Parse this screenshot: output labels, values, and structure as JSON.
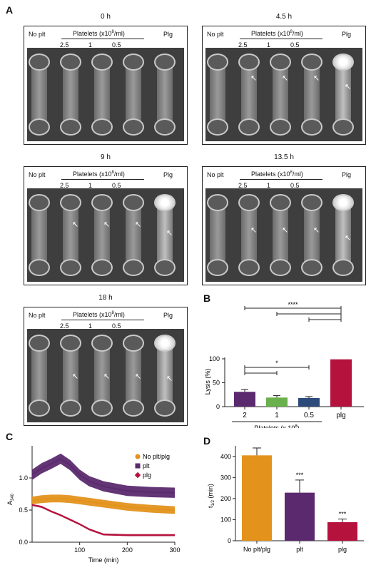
{
  "panel_labels": {
    "a": "A",
    "b": "B",
    "c": "C",
    "d": "D"
  },
  "header": {
    "no_plt": "No plt",
    "platelets": "Platelets (x10",
    "platelets_exp": "8",
    "platelets_unit": "/ml)",
    "plg": "Plg",
    "concs": [
      "2.5",
      "1",
      "0.5"
    ]
  },
  "timepoints": [
    "0 h",
    "4.5 h",
    "9 h",
    "13.5 h",
    "18 h"
  ],
  "panel_b": {
    "chart_data": {
      "type": "bar",
      "categories": [
        "2",
        "1",
        "0.5",
        "plg"
      ],
      "values": [
        31,
        19,
        18,
        99
      ],
      "errors": [
        5,
        4,
        3,
        0
      ],
      "colors": [
        "#5b2a6e",
        "#6ab04c",
        "#2c4a7a",
        "#b5123e"
      ],
      "ylabel": "Lysis (%)",
      "xlabel_main": "Platelets (x 10",
      "xlabel_exp": "8",
      "xlabel_end": ")",
      "yticks": [
        "0",
        "50",
        "100"
      ],
      "ylim": [
        0,
        100
      ],
      "sig": [
        "****",
        "*"
      ]
    }
  },
  "panel_c": {
    "chart_data": {
      "type": "line",
      "ylabel_main": "A",
      "ylabel_sub": "340",
      "xlabel": "Time (min)",
      "xlim": [
        0,
        300
      ],
      "ylim": [
        0,
        1.5
      ],
      "xticks": [
        "100",
        "200",
        "300"
      ],
      "yticks": [
        "0.0",
        "0.5",
        "1.0"
      ],
      "series": [
        {
          "name": "No plt/plg",
          "color": "#e3921c",
          "marker": "circle",
          "x": [
            0,
            20,
            40,
            60,
            80,
            100,
            120,
            150,
            200,
            250,
            300
          ],
          "y": [
            0.65,
            0.67,
            0.68,
            0.68,
            0.67,
            0.65,
            0.63,
            0.6,
            0.55,
            0.52,
            0.5
          ],
          "err": 0.06
        },
        {
          "name": "plt",
          "color": "#5b2a6e",
          "marker": "square",
          "x": [
            0,
            20,
            40,
            60,
            80,
            100,
            120,
            150,
            200,
            250,
            300
          ],
          "y": [
            1.05,
            1.15,
            1.22,
            1.3,
            1.2,
            1.05,
            0.95,
            0.87,
            0.8,
            0.78,
            0.77
          ],
          "err": 0.08
        },
        {
          "name": "plg",
          "color": "#b5123e",
          "marker": "diamond",
          "x": [
            0,
            20,
            40,
            60,
            80,
            100,
            120,
            150,
            200,
            250,
            300
          ],
          "y": [
            0.58,
            0.55,
            0.48,
            0.42,
            0.35,
            0.28,
            0.2,
            0.12,
            0.11,
            0.11,
            0.11
          ],
          "err": 0.015
        }
      ]
    }
  },
  "panel_d": {
    "chart_data": {
      "type": "bar",
      "categories": [
        "No plt/plg",
        "plt",
        "plg"
      ],
      "values": [
        405,
        228,
        88
      ],
      "errors": [
        35,
        60,
        15
      ],
      "colors": [
        "#e3921c",
        "#5b2a6e",
        "#b5123e"
      ],
      "ylabel_main": "t",
      "ylabel_sub": "1/2",
      "ylabel_end": " (min)",
      "yticks": [
        "0",
        "100",
        "200",
        "300",
        "400"
      ],
      "ylim": [
        0,
        450
      ],
      "sig": [
        "",
        "***",
        "***"
      ]
    }
  }
}
